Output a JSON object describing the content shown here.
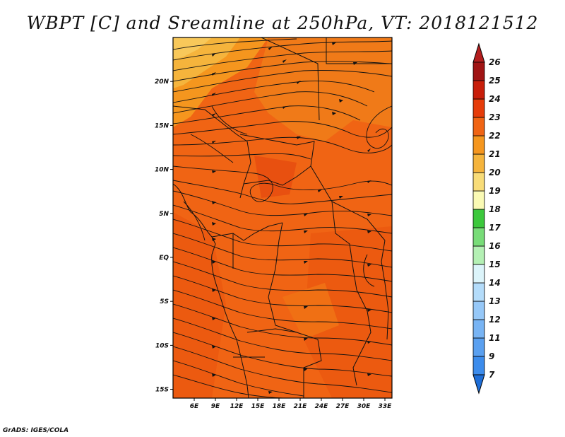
{
  "title": "WBPT [C] and Sreamline at 250hPa, VT: 2018121512",
  "credit": "GrADS: IGES/COLA",
  "map": {
    "lon_range": [
      3,
      34
    ],
    "lat_range": [
      -16,
      25
    ],
    "lon_ticks": [
      {
        "value": 6,
        "label": "6E"
      },
      {
        "value": 9,
        "label": "9E"
      },
      {
        "value": 12,
        "label": "12E"
      },
      {
        "value": 15,
        "label": "15E"
      },
      {
        "value": 18,
        "label": "18E"
      },
      {
        "value": 21,
        "label": "21E"
      },
      {
        "value": 24,
        "label": "24E"
      },
      {
        "value": 27,
        "label": "27E"
      },
      {
        "value": 30,
        "label": "30E"
      },
      {
        "value": 33,
        "label": "33E"
      }
    ],
    "lat_ticks": [
      {
        "value": 20,
        "label": "20N"
      },
      {
        "value": 15,
        "label": "15N"
      },
      {
        "value": 10,
        "label": "10N"
      },
      {
        "value": 5,
        "label": "5N"
      },
      {
        "value": 0,
        "label": "EQ"
      },
      {
        "value": -5,
        "label": "5S"
      },
      {
        "value": -10,
        "label": "10S"
      },
      {
        "value": -15,
        "label": "15S"
      }
    ],
    "field": "WBPT",
    "field_units": "C",
    "level": "250hPa",
    "valid_time": "2018121512",
    "dominant_levels": [
      "20",
      "21",
      "22",
      "23"
    ]
  },
  "colorbar": {
    "labels": [
      "7",
      "9",
      "11",
      "12",
      "13",
      "14",
      "15",
      "16",
      "17",
      "18",
      "19",
      "20",
      "21",
      "22",
      "23",
      "24",
      "25",
      "26"
    ],
    "colors": [
      "#1e6ed8",
      "#3c8cec",
      "#5aa0f0",
      "#78b4f4",
      "#96c8f8",
      "#b4dcfa",
      "#dcf4fa",
      "#b4f0b4",
      "#78dc78",
      "#3cc83c",
      "#fafab4",
      "#f8dc78",
      "#f5b43c",
      "#f5961e",
      "#f06414",
      "#e63c0a",
      "#c81e0a",
      "#a01414",
      "#b41e1e"
    ]
  }
}
